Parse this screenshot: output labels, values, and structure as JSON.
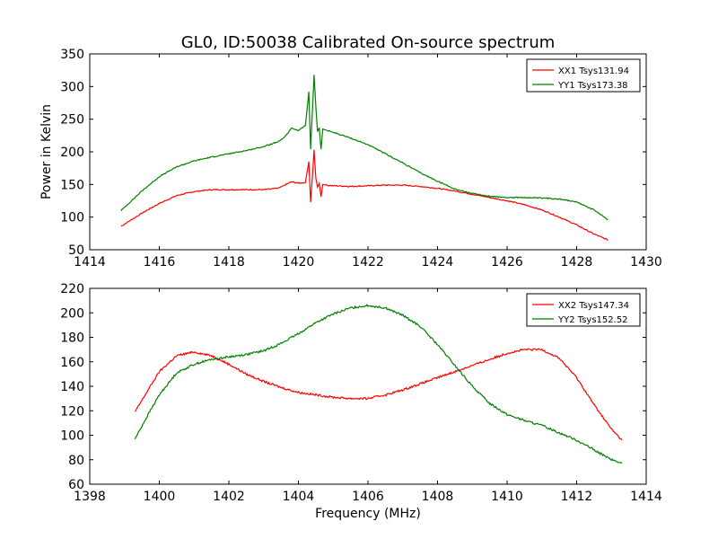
{
  "figure": {
    "title": "GL0, ID:50038 Calibrated On-source spectrum"
  },
  "chart_data": [
    {
      "type": "line",
      "title": "GL0, ID:50038 Calibrated On-source spectrum",
      "xlabel": "",
      "ylabel": "Power in Kelvin",
      "xlim": [
        1414,
        1430
      ],
      "ylim": [
        50,
        350
      ],
      "xticks": [
        1414,
        1416,
        1418,
        1420,
        1422,
        1424,
        1426,
        1428,
        1430
      ],
      "yticks": [
        50,
        100,
        150,
        200,
        250,
        300,
        350
      ],
      "legend_position": "top-right",
      "grid": false,
      "series": [
        {
          "name": "XX1 Tsys131.94",
          "color": "#ff0000",
          "x": [
            1414.9,
            1415.5,
            1416.0,
            1416.5,
            1417.0,
            1417.5,
            1418.0,
            1418.5,
            1419.0,
            1419.4,
            1419.6,
            1419.8,
            1420.0,
            1420.2,
            1420.3,
            1420.35,
            1420.4,
            1420.45,
            1420.5,
            1420.55,
            1420.6,
            1420.65,
            1420.7,
            1420.8,
            1421.0,
            1421.5,
            1422.0,
            1422.5,
            1423.0,
            1423.5,
            1424.0,
            1424.5,
            1425.0,
            1425.5,
            1426.0,
            1426.5,
            1427.0,
            1427.5,
            1428.0,
            1428.5,
            1428.9
          ],
          "values": [
            86,
            106,
            121,
            133,
            139,
            142,
            142,
            142,
            142,
            144,
            149,
            154,
            152,
            153,
            185,
            123,
            160,
            203,
            160,
            146,
            152,
            131,
            150,
            149,
            148,
            147,
            148,
            149,
            149,
            147,
            144,
            140,
            135,
            130,
            125,
            119,
            111,
            100,
            88,
            74,
            65
          ]
        },
        {
          "name": "YY1 Tsys173.38",
          "color": "#008000",
          "x": [
            1414.9,
            1415.5,
            1416.0,
            1416.5,
            1417.0,
            1417.5,
            1418.0,
            1418.5,
            1419.0,
            1419.4,
            1419.6,
            1419.8,
            1420.0,
            1420.2,
            1420.3,
            1420.35,
            1420.4,
            1420.45,
            1420.5,
            1420.55,
            1420.6,
            1420.65,
            1420.7,
            1420.8,
            1421.0,
            1421.5,
            1422.0,
            1422.5,
            1423.0,
            1423.5,
            1424.0,
            1424.5,
            1425.0,
            1425.5,
            1426.0,
            1426.5,
            1427.0,
            1427.5,
            1428.0,
            1428.5,
            1428.9
          ],
          "values": [
            110,
            140,
            162,
            177,
            186,
            192,
            197,
            202,
            208,
            215,
            222,
            236,
            233,
            240,
            292,
            204,
            260,
            318,
            270,
            231,
            237,
            204,
            235,
            233,
            230,
            221,
            211,
            197,
            183,
            168,
            155,
            143,
            136,
            132,
            130,
            130,
            129,
            128,
            123,
            111,
            96
          ]
        }
      ]
    },
    {
      "type": "line",
      "title": "",
      "xlabel": "Frequency (MHz)",
      "ylabel": "",
      "xlim": [
        1398,
        1414
      ],
      "ylim": [
        60,
        220
      ],
      "xticks": [
        1398,
        1400,
        1402,
        1404,
        1406,
        1408,
        1410,
        1412,
        1414
      ],
      "yticks": [
        60,
        80,
        100,
        120,
        140,
        160,
        180,
        200,
        220
      ],
      "legend_position": "top-right",
      "grid": false,
      "series": [
        {
          "name": "XX2 Tsys147.34",
          "color": "#ff0000",
          "x": [
            1399.3,
            1399.7,
            1400.0,
            1400.5,
            1401.0,
            1401.5,
            1402.0,
            1402.5,
            1403.0,
            1403.5,
            1404.0,
            1404.5,
            1405.0,
            1405.5,
            1406.0,
            1406.5,
            1407.0,
            1407.5,
            1408.0,
            1408.5,
            1409.0,
            1409.5,
            1410.0,
            1410.5,
            1411.0,
            1411.5,
            1412.0,
            1412.5,
            1413.0,
            1413.3
          ],
          "values": [
            119,
            138,
            152,
            165,
            168,
            165,
            158,
            150,
            144,
            139,
            135,
            133,
            131,
            130,
            130,
            133,
            137,
            142,
            147,
            152,
            157,
            162,
            167,
            170,
            170,
            163,
            147,
            125,
            105,
            96
          ]
        },
        {
          "name": "YY2 Tsys152.52",
          "color": "#008000",
          "x": [
            1399.3,
            1399.7,
            1400.0,
            1400.5,
            1401.0,
            1401.5,
            1402.0,
            1402.5,
            1403.0,
            1403.5,
            1404.0,
            1404.5,
            1405.0,
            1405.5,
            1406.0,
            1406.5,
            1407.0,
            1407.5,
            1408.0,
            1408.5,
            1409.0,
            1409.5,
            1410.0,
            1410.5,
            1411.0,
            1411.5,
            1412.0,
            1412.5,
            1413.0,
            1413.3
          ],
          "values": [
            97,
            118,
            133,
            151,
            158,
            162,
            164,
            166,
            169,
            175,
            183,
            192,
            199,
            204,
            206,
            204,
            198,
            189,
            174,
            157,
            140,
            126,
            117,
            112,
            108,
            102,
            96,
            88,
            80,
            77
          ]
        }
      ]
    }
  ]
}
